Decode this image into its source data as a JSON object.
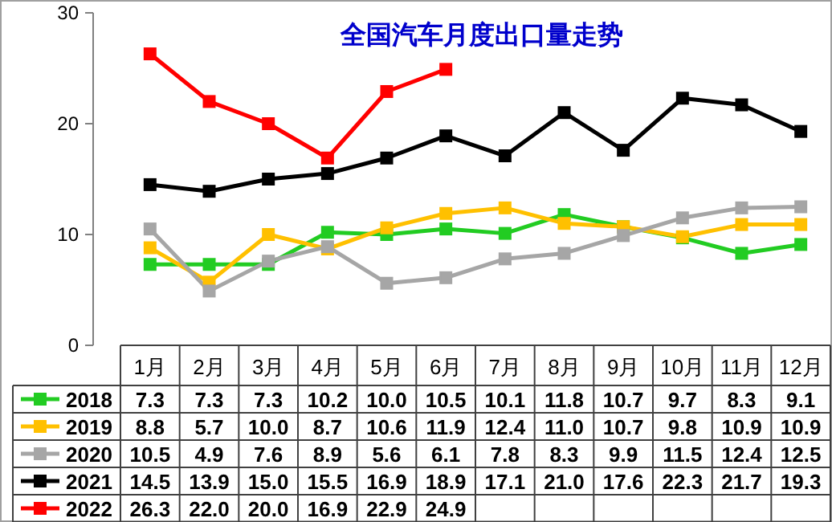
{
  "chart_data": {
    "type": "line",
    "title": "全国汽车月度出口量走势",
    "categories": [
      "1月",
      "2月",
      "3月",
      "4月",
      "5月",
      "6月",
      "7月",
      "8月",
      "9月",
      "10月",
      "11月",
      "12月"
    ],
    "series": [
      {
        "name": "2018",
        "color": "#22cc22",
        "values": [
          7.3,
          7.3,
          7.3,
          10.2,
          10.0,
          10.5,
          10.1,
          11.8,
          10.7,
          9.7,
          8.3,
          9.1
        ],
        "value_labels": [
          "7.3",
          "7.3",
          "7.3",
          "10.2",
          "10.0",
          "10.5",
          "10.1",
          "11.8",
          "10.7",
          "9.7",
          "8.3",
          "9.1"
        ]
      },
      {
        "name": "2019",
        "color": "#ffc000",
        "values": [
          8.8,
          5.7,
          10.0,
          8.7,
          10.6,
          11.9,
          12.4,
          11.0,
          10.7,
          9.8,
          10.9,
          10.9
        ],
        "value_labels": [
          "8.8",
          "5.7",
          "10.0",
          "8.7",
          "10.6",
          "11.9",
          "12.4",
          "11.0",
          "10.7",
          "9.8",
          "10.9",
          "10.9"
        ]
      },
      {
        "name": "2020",
        "color": "#a6a6a6",
        "values": [
          10.5,
          4.9,
          7.6,
          8.9,
          5.6,
          6.1,
          7.8,
          8.3,
          9.9,
          11.5,
          12.4,
          12.5
        ],
        "value_labels": [
          "10.5",
          "4.9",
          "7.6",
          "8.9",
          "5.6",
          "6.1",
          "7.8",
          "8.3",
          "9.9",
          "11.5",
          "12.4",
          "12.5"
        ]
      },
      {
        "name": "2021",
        "color": "#000000",
        "values": [
          14.5,
          13.9,
          15.0,
          15.5,
          16.9,
          18.9,
          17.1,
          21.0,
          17.6,
          22.3,
          21.7,
          19.3
        ],
        "value_labels": [
          "14.5",
          "13.9",
          "15.0",
          "15.5",
          "16.9",
          "18.9",
          "17.1",
          "21.0",
          "17.6",
          "22.3",
          "21.7",
          "19.3"
        ]
      },
      {
        "name": "2022",
        "color": "#ff0000",
        "values": [
          26.3,
          22.0,
          20.0,
          16.9,
          22.9,
          24.9,
          null,
          null,
          null,
          null,
          null,
          null
        ],
        "value_labels": [
          "26.3",
          "22.0",
          "20.0",
          "16.9",
          "22.9",
          "24.9",
          null,
          null,
          null,
          null,
          null,
          null
        ]
      }
    ],
    "ylim": [
      0,
      30
    ],
    "yticks": [
      0,
      10,
      20,
      30
    ],
    "marker": "square",
    "legend": "bottom left"
  }
}
